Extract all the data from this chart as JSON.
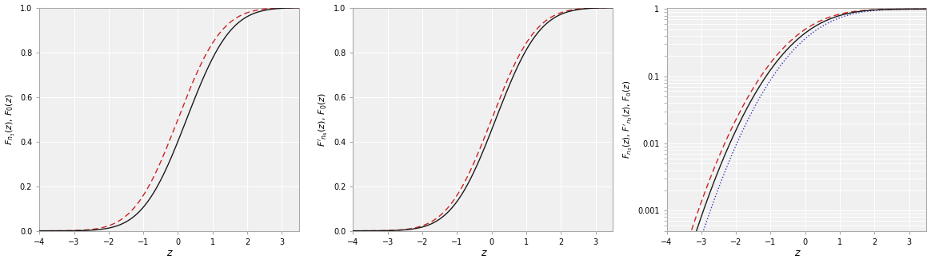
{
  "xlim": [
    -4,
    3.5
  ],
  "ylim_linear": [
    0,
    1
  ],
  "ylim_log": [
    0.0005,
    1.05
  ],
  "yticks_linear": [
    0.0,
    0.2,
    0.4,
    0.6,
    0.8,
    1.0
  ],
  "xticks": [
    -4,
    -3,
    -2,
    -1,
    0,
    1,
    2,
    3
  ],
  "xlabel": "z",
  "ylabel1": "$F_{n_3}(z),\\,F_0(z)$",
  "ylabel2": "$F'_{n_6}(z),\\,F_0(z)$",
  "ylabel3": "$F_{n_3}(z),\\,F'_{n_3}(z),\\,F_0(z)$",
  "solid_color": "#1a1a1a",
  "dashed_color": "#cc2222",
  "dotted_color": "#3333bb",
  "line_width": 1.0,
  "bg_color": "#f0f0f0",
  "grid_color": "#ffffff"
}
